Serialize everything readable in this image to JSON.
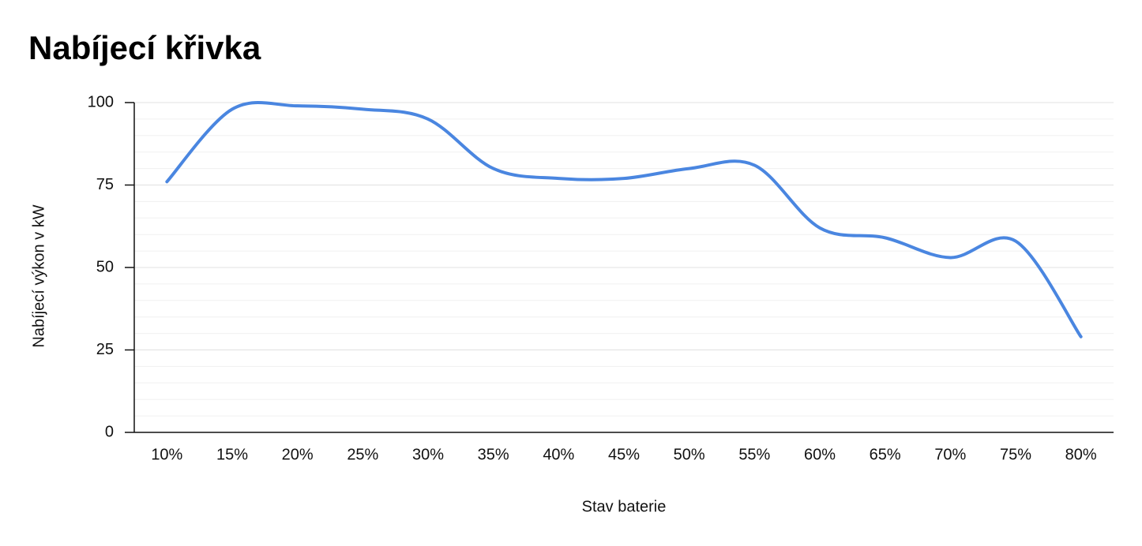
{
  "chart_data": {
    "type": "line",
    "title": "Nabíjecí křivka",
    "x_label": "Stav baterie",
    "y_label": "Nabíjecí výkon v kW",
    "categories": [
      "10%",
      "15%",
      "20%",
      "25%",
      "30%",
      "35%",
      "40%",
      "45%",
      "50%",
      "55%",
      "60%",
      "65%",
      "70%",
      "75%",
      "80%"
    ],
    "series": [
      {
        "name": "Nabíjecí výkon v kW",
        "color": "#4a86e0",
        "values": [
          76,
          98,
          99,
          98,
          95,
          80,
          77,
          77,
          80,
          81,
          62,
          59,
          53,
          58,
          29
        ]
      }
    ],
    "ylim": [
      0,
      100
    ],
    "yticks": [
      0,
      25,
      50,
      75,
      100
    ],
    "grid": true
  }
}
